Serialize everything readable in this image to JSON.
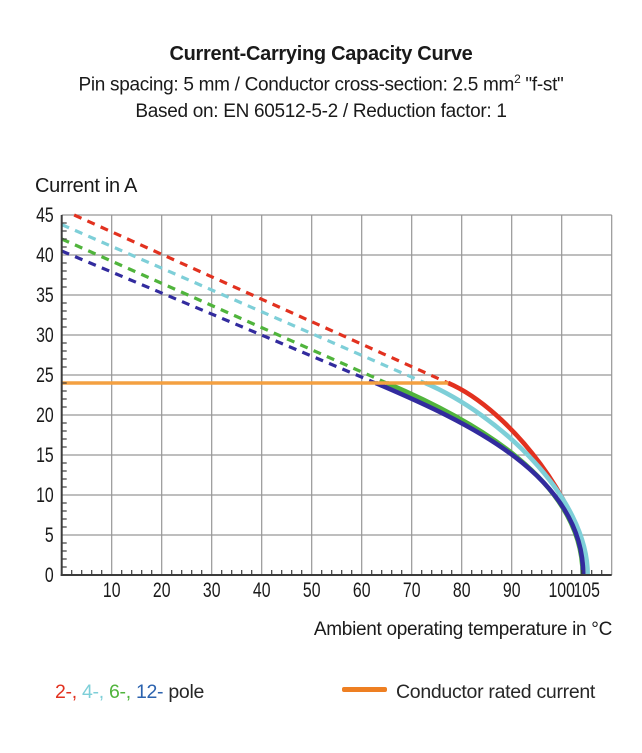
{
  "header": {
    "title": "Current-Carrying Capacity Curve",
    "subtitle_pre": "Pin spacing: 5 mm / Conductor cross-section: 2.5 mm",
    "subtitle_sup": "2",
    "subtitle_post": " \"f-st\"",
    "basis": "Based on: EN 60512-5-2 / Reduction factor: 1"
  },
  "chart_data": {
    "type": "line",
    "title": "Current-Carrying Capacity Curve",
    "ylabel": "Current in A",
    "xlabel": "Ambient operating temperature in °C",
    "xlim": [
      0,
      110
    ],
    "ylim": [
      0,
      45
    ],
    "x_ticks": [
      10,
      20,
      30,
      40,
      50,
      60,
      70,
      80,
      90,
      100,
      105
    ],
    "y_ticks": [
      0,
      5,
      10,
      15,
      20,
      25,
      30,
      35,
      40,
      45
    ],
    "x_minor_step": 2,
    "y_minor_step": 1,
    "grid": true,
    "grid_color": "#969696",
    "axis_color": "#3c3c3c",
    "rated_current_A": 24,
    "rated_line": {
      "y": 24,
      "x_start": 0,
      "x_end": 77.3,
      "color": "#F4A041"
    },
    "series": [
      {
        "name": "2-pole",
        "poles": "2-",
        "color": "#E2311F",
        "legend_color": "#E2311F",
        "style": "dashed-above-rated-solid-below",
        "y_intercept": 45.7,
        "x_at_rated": 77.3,
        "x_zero": 104.9
      },
      {
        "name": "4-pole",
        "poles": "4-",
        "color": "#7ECFD8",
        "legend_color": "#7ECFD8",
        "style": "dashed-above-rated-solid-below",
        "y_intercept": 43.8,
        "x_at_rated": 72.7,
        "x_zero": 105.2
      },
      {
        "name": "6-pole",
        "poles": "6-",
        "color": "#50B43C",
        "legend_color": "#50B43C",
        "style": "dashed-above-rated-solid-below",
        "y_intercept": 42.0,
        "x_at_rated": 65.0,
        "x_zero": 104.2
      },
      {
        "name": "12-pole",
        "poles": "12-",
        "color": "#322B9E",
        "legend_color": "#2B62AE",
        "style": "dashed-above-rated-solid-below",
        "y_intercept": 40.5,
        "x_at_rated": 62.8,
        "x_zero": 104.3
      }
    ],
    "legend": {
      "separator": ", ",
      "pole_suffix": " pole",
      "pole_suffix_color": "#262626",
      "rated_label": "Conductor rated current",
      "rated_swatch_color": "#EE7F22"
    }
  }
}
